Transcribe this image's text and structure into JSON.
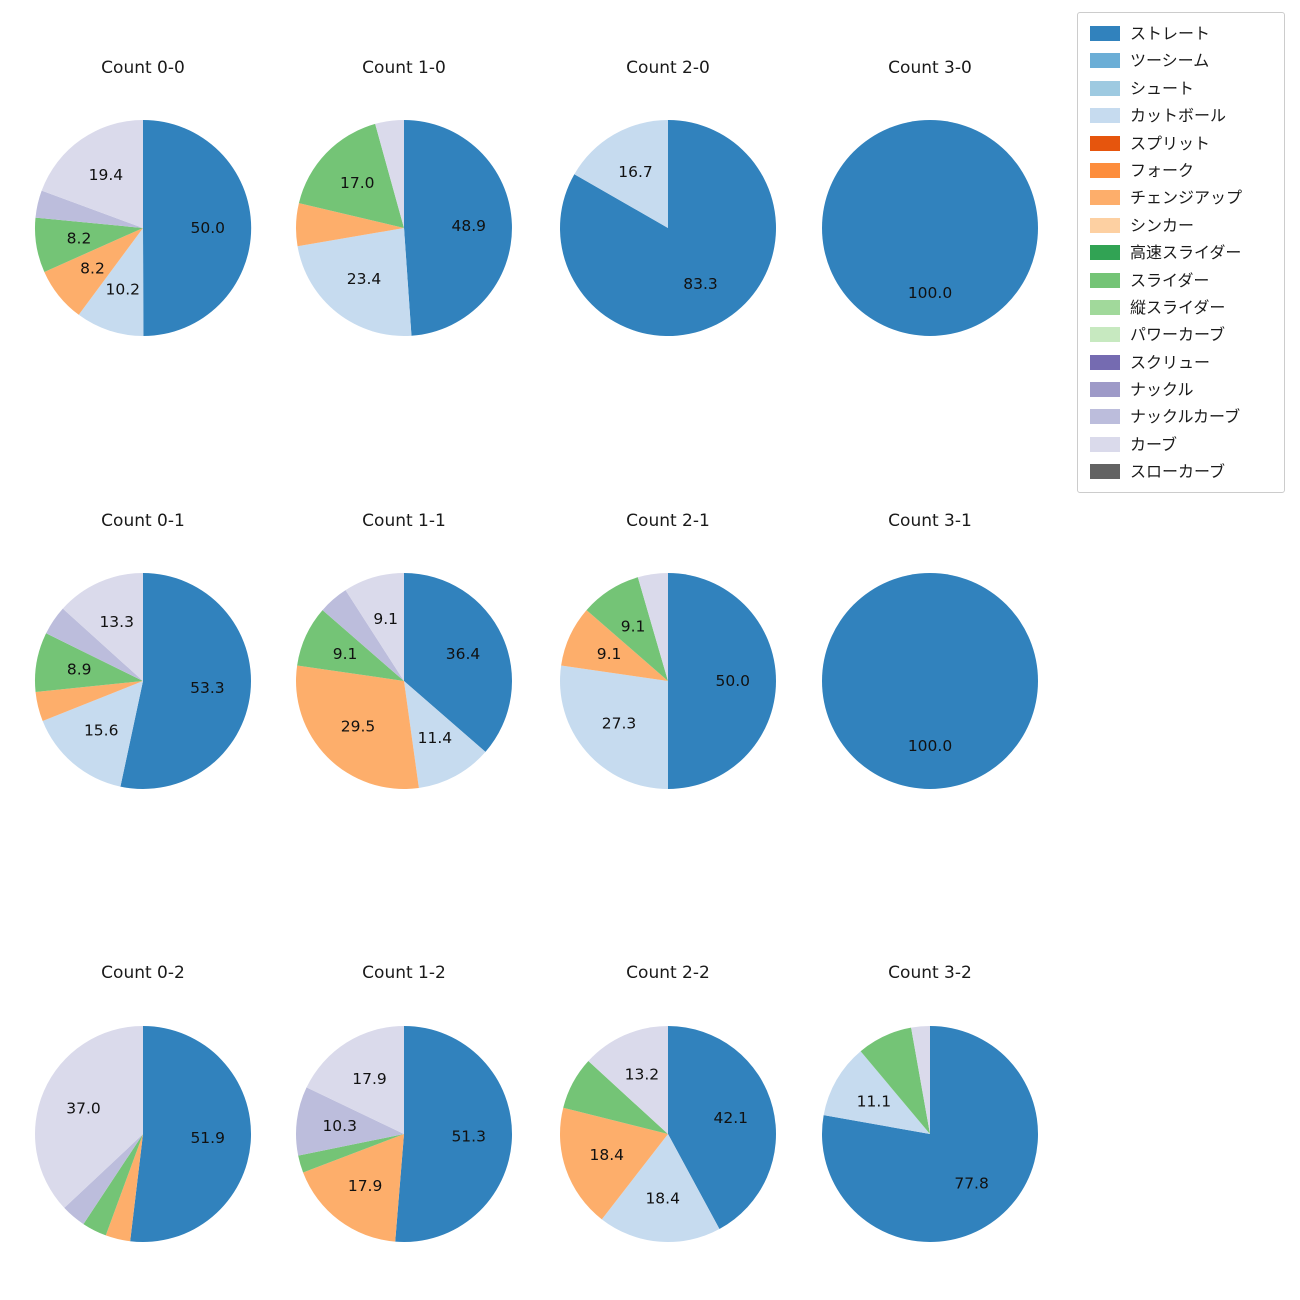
{
  "figure": {
    "background_color": "#ffffff",
    "text_color": "#1a1a1a"
  },
  "legend": {
    "position": "upper-right",
    "items": [
      {
        "label": "ストレート",
        "color": "#3182bd"
      },
      {
        "label": "ツーシーム",
        "color": "#6baed6"
      },
      {
        "label": "シュート",
        "color": "#9ecae1"
      },
      {
        "label": "カットボール",
        "color": "#c6dbef"
      },
      {
        "label": "スプリット",
        "color": "#e6550d"
      },
      {
        "label": "フォーク",
        "color": "#fd8d3c"
      },
      {
        "label": "チェンジアップ",
        "color": "#fdae6b"
      },
      {
        "label": "シンカー",
        "color": "#fdd0a2"
      },
      {
        "label": "高速スライダー",
        "color": "#31a354"
      },
      {
        "label": "スライダー",
        "color": "#74c476"
      },
      {
        "label": "縦スライダー",
        "color": "#a1d99b"
      },
      {
        "label": "パワーカーブ",
        "color": "#c7e9c0"
      },
      {
        "label": "スクリュー",
        "color": "#756bb1"
      },
      {
        "label": "ナックル",
        "color": "#9e9ac8"
      },
      {
        "label": "ナックルカーブ",
        "color": "#bcbddc"
      },
      {
        "label": "カーブ",
        "color": "#dadaeb"
      },
      {
        "label": "スローカーブ",
        "color": "#636363"
      }
    ]
  },
  "chart_data": {
    "type": "pie",
    "grid": {
      "rows": 3,
      "cols": 4
    },
    "start_angle_deg": 90,
    "direction": "clockwise",
    "pct_label_distance": 0.6,
    "legend_position": "upper right",
    "charts": [
      {
        "title": "Count 0-0",
        "slices": [
          {
            "pitch": "ストレート",
            "pct": 50.0,
            "label": "50.0"
          },
          {
            "pitch": "カットボール",
            "pct": 10.2,
            "label": "10.2"
          },
          {
            "pitch": "チェンジアップ",
            "pct": 8.2,
            "label": "8.2"
          },
          {
            "pitch": "スライダー",
            "pct": 8.2,
            "label": "8.2"
          },
          {
            "pitch": "ナックルカーブ",
            "pct": 4.1,
            "label": ""
          },
          {
            "pitch": "カーブ",
            "pct": 19.4,
            "label": "19.4"
          }
        ]
      },
      {
        "title": "Count 1-0",
        "slices": [
          {
            "pitch": "ストレート",
            "pct": 48.9,
            "label": "48.9"
          },
          {
            "pitch": "カットボール",
            "pct": 23.4,
            "label": "23.4"
          },
          {
            "pitch": "チェンジアップ",
            "pct": 6.4,
            "label": ""
          },
          {
            "pitch": "スライダー",
            "pct": 17.0,
            "label": "17.0"
          },
          {
            "pitch": "カーブ",
            "pct": 4.3,
            "label": ""
          }
        ]
      },
      {
        "title": "Count 2-0",
        "slices": [
          {
            "pitch": "ストレート",
            "pct": 83.3,
            "label": "83.3"
          },
          {
            "pitch": "カットボール",
            "pct": 16.7,
            "label": "16.7"
          }
        ]
      },
      {
        "title": "Count 3-0",
        "slices": [
          {
            "pitch": "ストレート",
            "pct": 100.0,
            "label": "100.0"
          }
        ]
      },
      {
        "title": "Count 0-1",
        "slices": [
          {
            "pitch": "ストレート",
            "pct": 53.3,
            "label": "53.3"
          },
          {
            "pitch": "カットボール",
            "pct": 15.6,
            "label": "15.6"
          },
          {
            "pitch": "チェンジアップ",
            "pct": 4.4,
            "label": ""
          },
          {
            "pitch": "スライダー",
            "pct": 8.9,
            "label": "8.9"
          },
          {
            "pitch": "ナックルカーブ",
            "pct": 4.4,
            "label": ""
          },
          {
            "pitch": "カーブ",
            "pct": 13.3,
            "label": "13.3"
          }
        ]
      },
      {
        "title": "Count 1-1",
        "slices": [
          {
            "pitch": "ストレート",
            "pct": 36.4,
            "label": "36.4"
          },
          {
            "pitch": "カットボール",
            "pct": 11.4,
            "label": "11.4"
          },
          {
            "pitch": "チェンジアップ",
            "pct": 29.5,
            "label": "29.5"
          },
          {
            "pitch": "スライダー",
            "pct": 9.1,
            "label": "9.1"
          },
          {
            "pitch": "ナックルカーブ",
            "pct": 4.5,
            "label": ""
          },
          {
            "pitch": "カーブ",
            "pct": 9.1,
            "label": "9.1"
          }
        ]
      },
      {
        "title": "Count 2-1",
        "slices": [
          {
            "pitch": "ストレート",
            "pct": 50.0,
            "label": "50.0"
          },
          {
            "pitch": "カットボール",
            "pct": 27.3,
            "label": "27.3"
          },
          {
            "pitch": "チェンジアップ",
            "pct": 9.1,
            "label": "9.1"
          },
          {
            "pitch": "スライダー",
            "pct": 9.1,
            "label": "9.1"
          },
          {
            "pitch": "カーブ",
            "pct": 4.5,
            "label": ""
          }
        ]
      },
      {
        "title": "Count 3-1",
        "slices": [
          {
            "pitch": "ストレート",
            "pct": 100.0,
            "label": "100.0"
          }
        ]
      },
      {
        "title": "Count 0-2",
        "slices": [
          {
            "pitch": "ストレート",
            "pct": 51.9,
            "label": "51.9"
          },
          {
            "pitch": "チェンジアップ",
            "pct": 3.7,
            "label": ""
          },
          {
            "pitch": "スライダー",
            "pct": 3.7,
            "label": ""
          },
          {
            "pitch": "ナックルカーブ",
            "pct": 3.7,
            "label": ""
          },
          {
            "pitch": "カーブ",
            "pct": 37.0,
            "label": "37.0"
          }
        ]
      },
      {
        "title": "Count 1-2",
        "slices": [
          {
            "pitch": "ストレート",
            "pct": 51.3,
            "label": "51.3"
          },
          {
            "pitch": "チェンジアップ",
            "pct": 17.9,
            "label": "17.9"
          },
          {
            "pitch": "スライダー",
            "pct": 2.6,
            "label": ""
          },
          {
            "pitch": "ナックルカーブ",
            "pct": 10.3,
            "label": "10.3"
          },
          {
            "pitch": "カーブ",
            "pct": 17.9,
            "label": "17.9"
          }
        ]
      },
      {
        "title": "Count 2-2",
        "slices": [
          {
            "pitch": "ストレート",
            "pct": 42.1,
            "label": "42.1"
          },
          {
            "pitch": "カットボール",
            "pct": 18.4,
            "label": "18.4"
          },
          {
            "pitch": "チェンジアップ",
            "pct": 18.4,
            "label": "18.4"
          },
          {
            "pitch": "スライダー",
            "pct": 7.9,
            "label": ""
          },
          {
            "pitch": "カーブ",
            "pct": 13.2,
            "label": "13.2"
          }
        ]
      },
      {
        "title": "Count 3-2",
        "slices": [
          {
            "pitch": "ストレート",
            "pct": 77.8,
            "label": "77.8"
          },
          {
            "pitch": "カットボール",
            "pct": 11.1,
            "label": "11.1"
          },
          {
            "pitch": "スライダー",
            "pct": 8.3,
            "label": ""
          },
          {
            "pitch": "カーブ",
            "pct": 2.8,
            "label": ""
          }
        ]
      }
    ]
  }
}
